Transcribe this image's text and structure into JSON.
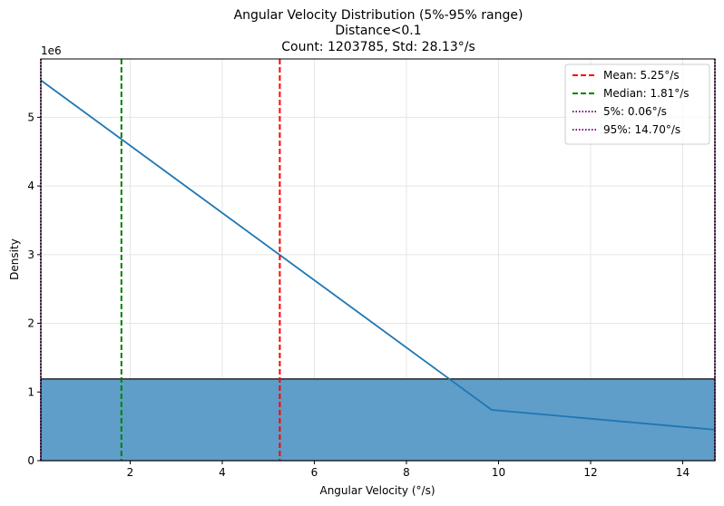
{
  "chart_data": {
    "type": "histogram",
    "title": [
      "Angular Velocity Distribution (5%-95% range)",
      "Distance<0.1",
      "Count: 1203785, Std: 28.13°/s"
    ],
    "xlabel": "Angular Velocity (°/s)",
    "ylabel": "Density",
    "y_offset_label": "1e6",
    "xlim": [
      0.06,
      14.7
    ],
    "ylim": [
      0,
      5.85
    ],
    "x_ticks": [
      2,
      4,
      6,
      8,
      10,
      12,
      14
    ],
    "y_ticks": [
      0,
      1,
      2,
      3,
      4,
      5
    ],
    "grid": true,
    "histogram_bar": {
      "x_start": 0.06,
      "x_end": 14.7,
      "height": 1.19
    },
    "kde_line": {
      "x": [
        0.06,
        9.85,
        14.7
      ],
      "y": [
        5.54,
        0.74,
        0.45
      ]
    },
    "vlines": [
      {
        "key": "mean",
        "label": "Mean: 5.25°/s",
        "x": 5.25,
        "color": "#ff0000",
        "style": "dashed"
      },
      {
        "key": "median",
        "label": "Median: 1.81°/s",
        "x": 1.81,
        "color": "#008000",
        "style": "dashed"
      },
      {
        "key": "p5",
        "label": "5%: 0.06°/s",
        "x": 0.06,
        "color": "#800080",
        "style": "dotted"
      },
      {
        "key": "p95",
        "label": "95%: 14.70°/s",
        "x": 14.7,
        "color": "#800080",
        "style": "dotted"
      }
    ],
    "legend_position": "top-right",
    "colors": {
      "bar": "#5f9ec8",
      "kde": "#1f77b4",
      "grid": "#e6e6e6"
    }
  }
}
